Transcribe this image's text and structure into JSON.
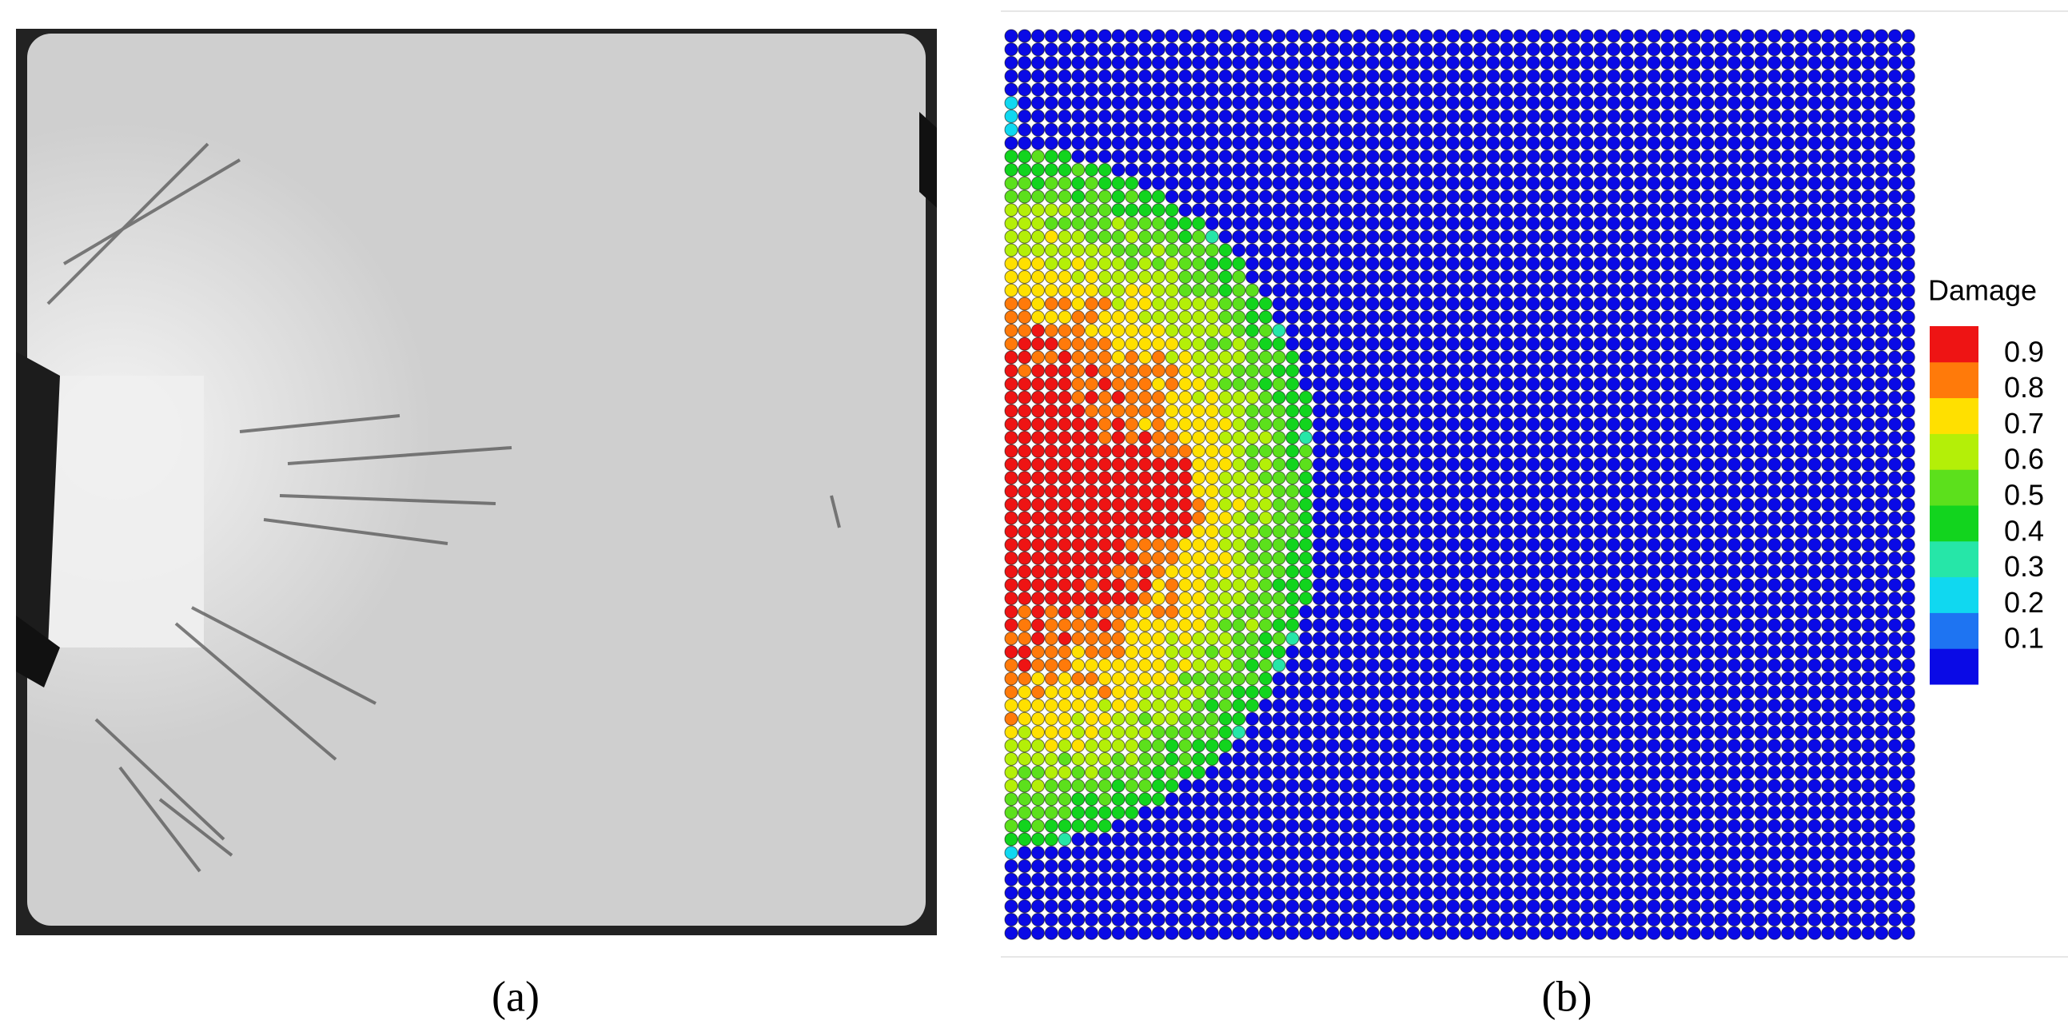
{
  "panels": [
    {
      "label": "(a)"
    },
    {
      "label": "(b)"
    }
  ],
  "legend": {
    "title": "Damage",
    "ticks": [
      0.1,
      0.2,
      0.3,
      0.4,
      0.5,
      0.6,
      0.7,
      0.8,
      0.9
    ],
    "colors": [
      "#0a0ae6",
      "#1e74f2",
      "#10d8f0",
      "#26e6a8",
      "#12d41e",
      "#5ce01c",
      "#b4ef08",
      "#ffe000",
      "#ff7a0a",
      "#ee1414"
    ],
    "range": [
      0,
      1
    ]
  }
}
